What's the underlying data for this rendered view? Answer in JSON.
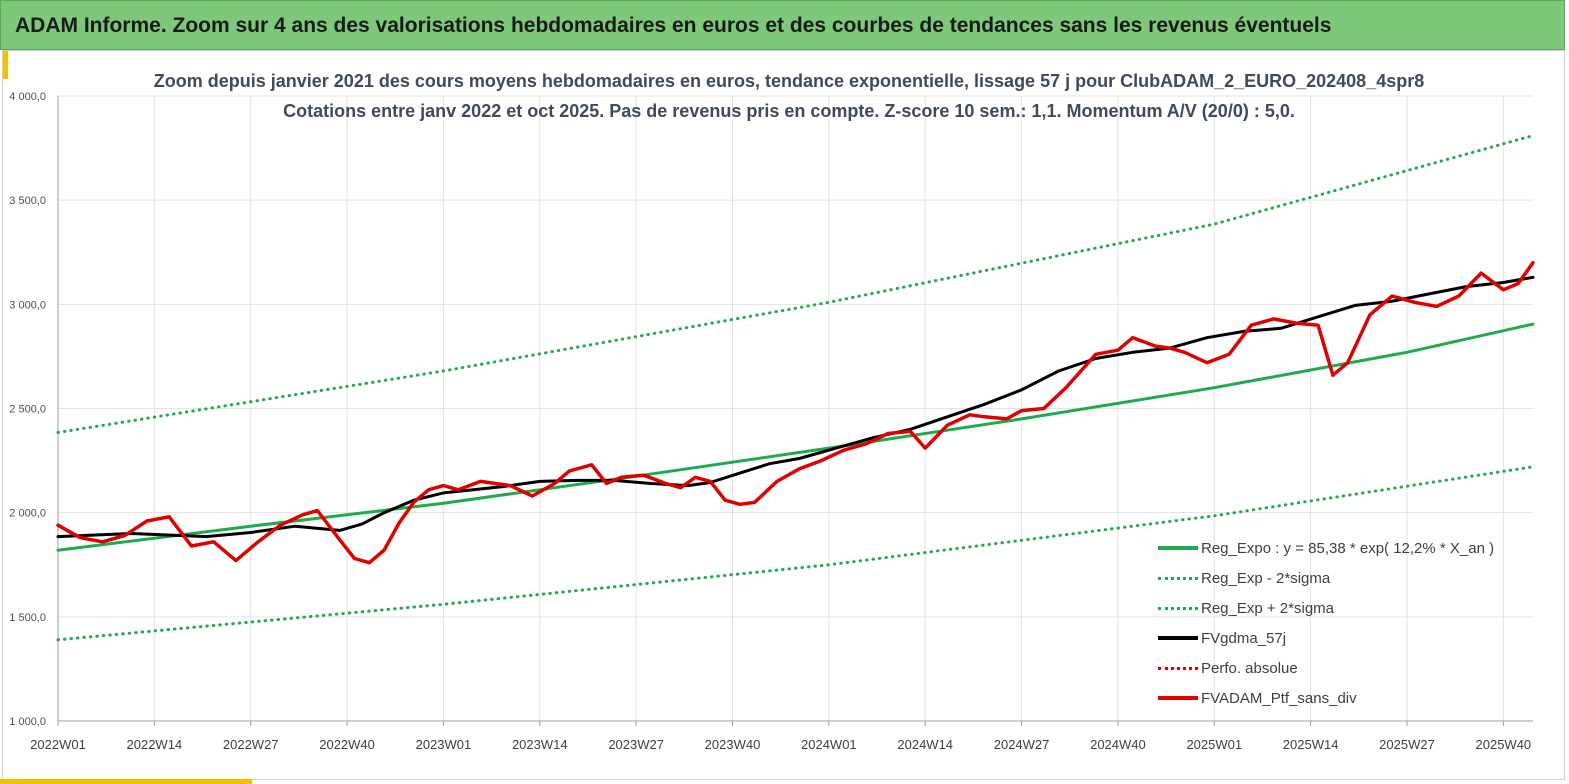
{
  "header": {
    "title": "ADAM Informe. Zoom sur 4 ans des valorisations hebdomadaires en euros et des courbes de tendances sans les revenus éventuels"
  },
  "chart_data": {
    "type": "line",
    "title": "Zoom depuis janvier 2021 des cours moyens hebdomadaires en euros, tendance exponentielle, lissage 57 j pour ClubADAM_2_EURO_202408_4spr8",
    "subtitle": "Cotations entre janv 2022 et oct 2025. Pas de revenus pris en compte. Z-score 10 sem.: 1,1. Momentum A/V (20/0) : 5,0.",
    "xlabel": "",
    "ylabel": "",
    "ylim": [
      1000,
      4000
    ],
    "y_ticks": [
      "1 000,0",
      "1 500,0",
      "2 000,0",
      "2 500,0",
      "3 000,0",
      "3 500,0",
      "4 000,0"
    ],
    "x_ticks": [
      "2022W01",
      "2022W14",
      "2022W27",
      "2022W40",
      "2023W01",
      "2023W14",
      "2023W27",
      "2023W40",
      "2024W01",
      "2024W14",
      "2024W27",
      "2024W40",
      "2025W01",
      "2025W14",
      "2025W27",
      "2025W40"
    ],
    "x_range_weeks": [
      0,
      199
    ],
    "grid": true,
    "legend_position": "bottom-right",
    "series": [
      {
        "name": "Reg_Expo : y = 85,38 * exp( 12,2% *  X_an )",
        "color": "#1eab4e",
        "style": "solid",
        "x": [
          0,
          26,
          52,
          78,
          104,
          130,
          156,
          182,
          199
        ],
        "values": [
          1820,
          1935,
          2045,
          2175,
          2310,
          2450,
          2600,
          2770,
          2905
        ]
      },
      {
        "name": "Reg_Exp - 2*sigma",
        "color": "#1eab4e",
        "style": "dotted",
        "x": [
          0,
          52,
          104,
          156,
          199
        ],
        "values": [
          1390,
          1560,
          1750,
          1985,
          2220
        ]
      },
      {
        "name": "Reg_Exp + 2*sigma",
        "color": "#1eab4e",
        "style": "dotted",
        "x": [
          0,
          52,
          104,
          156,
          199
        ],
        "values": [
          2385,
          2680,
          3010,
          3385,
          3810
        ]
      },
      {
        "name": "FVgdma_57j",
        "color": "#000000",
        "style": "solid",
        "x": [
          0,
          10,
          20,
          26,
          32,
          38,
          41,
          44,
          48,
          52,
          56,
          60,
          65,
          70,
          75,
          80,
          85,
          88,
          92,
          96,
          100,
          105,
          110,
          115,
          120,
          125,
          130,
          135,
          140,
          145,
          150,
          155,
          160,
          165,
          170,
          175,
          180,
          185,
          190,
          195,
          199
        ],
        "values": [
          1885,
          1900,
          1885,
          1905,
          1935,
          1915,
          1945,
          2000,
          2060,
          2095,
          2110,
          2125,
          2150,
          2155,
          2155,
          2140,
          2130,
          2145,
          2190,
          2235,
          2260,
          2310,
          2360,
          2400,
          2460,
          2520,
          2590,
          2680,
          2740,
          2770,
          2790,
          2840,
          2870,
          2885,
          2940,
          2995,
          3015,
          3050,
          3085,
          3105,
          3130
        ]
      },
      {
        "name": "Perfo. absolue",
        "color": "#e00000",
        "style": "dotted",
        "x": [],
        "values": []
      },
      {
        "name": "FVADAM_Ptf_sans_div",
        "color": "#e00000",
        "style": "solid",
        "x": [
          0,
          3,
          6,
          9,
          12,
          15,
          18,
          21,
          24,
          27,
          30,
          33,
          35,
          38,
          40,
          42,
          44,
          46,
          48,
          50,
          52,
          54,
          57,
          59,
          61,
          64,
          67,
          69,
          72,
          74,
          76,
          79,
          82,
          84,
          86,
          88,
          90,
          92,
          94,
          97,
          100,
          103,
          106,
          109,
          112,
          115,
          117,
          120,
          123,
          125,
          128,
          130,
          133,
          136,
          138,
          140,
          143,
          145,
          148,
          150,
          152,
          155,
          158,
          161,
          164,
          167,
          170,
          172,
          174,
          177,
          180,
          183,
          186,
          189,
          192,
          195,
          197,
          199
        ],
        "values": [
          1940,
          1880,
          1860,
          1890,
          1960,
          1980,
          1840,
          1860,
          1770,
          1860,
          1940,
          1990,
          2010,
          1870,
          1780,
          1760,
          1820,
          1950,
          2050,
          2110,
          2130,
          2110,
          2150,
          2140,
          2130,
          2080,
          2140,
          2200,
          2230,
          2140,
          2170,
          2180,
          2140,
          2120,
          2170,
          2150,
          2060,
          2040,
          2050,
          2150,
          2210,
          2250,
          2300,
          2330,
          2380,
          2390,
          2310,
          2420,
          2470,
          2460,
          2450,
          2490,
          2500,
          2600,
          2680,
          2760,
          2780,
          2840,
          2800,
          2790,
          2770,
          2720,
          2760,
          2900,
          2930,
          2910,
          2900,
          2660,
          2720,
          2950,
          3040,
          3010,
          2990,
          3040,
          3150,
          3070,
          3100,
          3200
        ]
      }
    ]
  }
}
